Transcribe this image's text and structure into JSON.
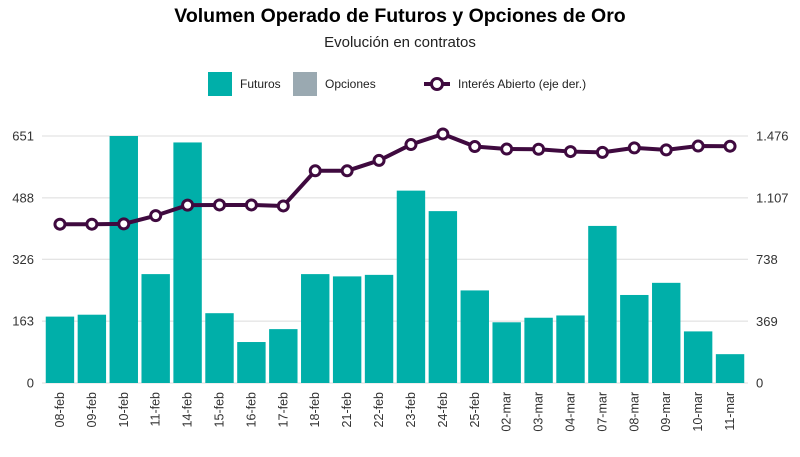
{
  "chart_data": {
    "type": "bar",
    "title": "Volumen Operado de Futuros y Opciones de Oro",
    "subtitle": "Evolución en contratos",
    "categories": [
      "08-feb",
      "09-feb",
      "10-feb",
      "11-feb",
      "14-feb",
      "15-feb",
      "16-feb",
      "17-feb",
      "18-feb",
      "21-feb",
      "22-feb",
      "23-feb",
      "24-feb",
      "25-feb",
      "02-mar",
      "03-mar",
      "04-mar",
      "07-mar",
      "08-mar",
      "09-mar",
      "10-mar",
      "11-mar"
    ],
    "series": [
      {
        "name": "Futuros",
        "type": "bar",
        "axis": "left",
        "values": [
          175,
          180,
          651,
          287,
          634,
          184,
          108,
          142,
          287,
          281,
          285,
          507,
          453,
          244,
          160,
          172,
          178,
          414,
          232,
          264,
          136,
          76
        ]
      },
      {
        "name": "Opciones",
        "type": "bar",
        "axis": "left",
        "values": [
          0,
          0,
          0,
          0,
          0,
          0,
          0,
          0,
          0,
          0,
          0,
          0,
          0,
          0,
          0,
          0,
          0,
          0,
          0,
          0,
          0,
          0
        ]
      },
      {
        "name": "Interés Abierto (eje der.)",
        "type": "line",
        "axis": "right",
        "values": [
          949,
          949,
          951,
          1000,
          1063,
          1064,
          1064,
          1058,
          1268,
          1268,
          1330,
          1425,
          1488,
          1413,
          1398,
          1397,
          1383,
          1378,
          1405,
          1393,
          1416,
          1415
        ]
      }
    ],
    "y_left": {
      "ticks": [
        0,
        163,
        326,
        488,
        651
      ],
      "tick_labels": [
        "0",
        "163",
        "326",
        "488",
        "651"
      ],
      "ylim": [
        0,
        651
      ]
    },
    "y_right": {
      "ticks": [
        0,
        369,
        738,
        1107,
        1476
      ],
      "tick_labels": [
        "0",
        "369",
        "738",
        "1.107",
        "1.476"
      ],
      "ylim": [
        0,
        1476
      ]
    },
    "xlabel": "",
    "ylabel": "",
    "grid": true,
    "legend_position": "top-center"
  },
  "colors": {
    "futuros": "#00afa9",
    "opciones": "#9aa9b1",
    "interes": "#3f0a3f",
    "grid": "#dcdcdc",
    "tick_text": "#333333"
  }
}
